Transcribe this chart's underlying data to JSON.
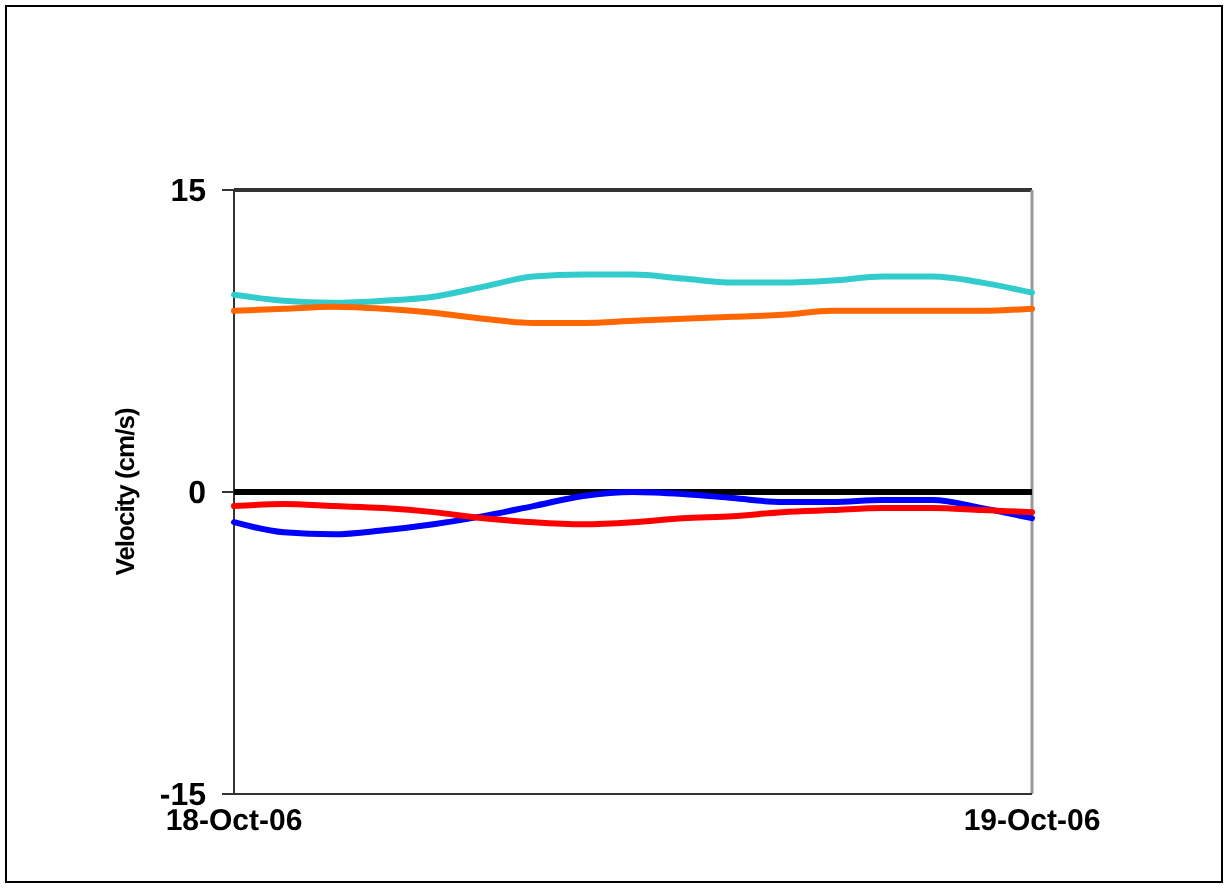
{
  "chart_data": {
    "type": "line",
    "ylabel": "Velocity (cm/s)",
    "categories": [
      "18-Oct-06",
      null,
      null,
      null,
      null,
      null,
      null,
      null,
      null,
      null,
      null,
      null,
      null,
      null,
      null,
      null,
      "19-Oct-06"
    ],
    "ylim": [
      -15,
      15
    ],
    "yticks": [
      -15,
      0,
      15
    ],
    "line_style": "solid",
    "ref_lines": [
      {
        "axis": "y",
        "value": 0,
        "color": "#000000"
      }
    ],
    "series": [
      {
        "color": "#33cccc",
        "values": [
          9.8,
          9.5,
          9.4,
          9.5,
          9.7,
          10.2,
          10.7,
          10.8,
          10.8,
          10.6,
          10.4,
          10.4,
          10.5,
          10.7,
          10.7,
          10.4,
          9.9
        ]
      },
      {
        "color": "#ff6600",
        "values": [
          9.0,
          9.1,
          9.2,
          9.1,
          8.9,
          8.6,
          8.4,
          8.4,
          8.5,
          8.6,
          8.7,
          8.8,
          9.0,
          9.0,
          9.0,
          9.0,
          9.1
        ]
      },
      {
        "color": "#0000ff",
        "values": [
          -1.5,
          -2.0,
          -2.1,
          -1.9,
          -1.6,
          -1.2,
          -0.7,
          -0.2,
          0,
          -0.1,
          -0.3,
          -0.5,
          -0.5,
          -0.4,
          -0.4,
          -0.8,
          -1.3
        ]
      },
      {
        "color": "#ff0000",
        "values": [
          -0.7,
          -0.6,
          -0.7,
          -0.8,
          -1.0,
          -1.3,
          -1.5,
          -1.6,
          -1.5,
          -1.3,
          -1.2,
          -1.0,
          -0.9,
          -0.8,
          -0.8,
          -0.9,
          -1.0
        ]
      }
    ]
  }
}
